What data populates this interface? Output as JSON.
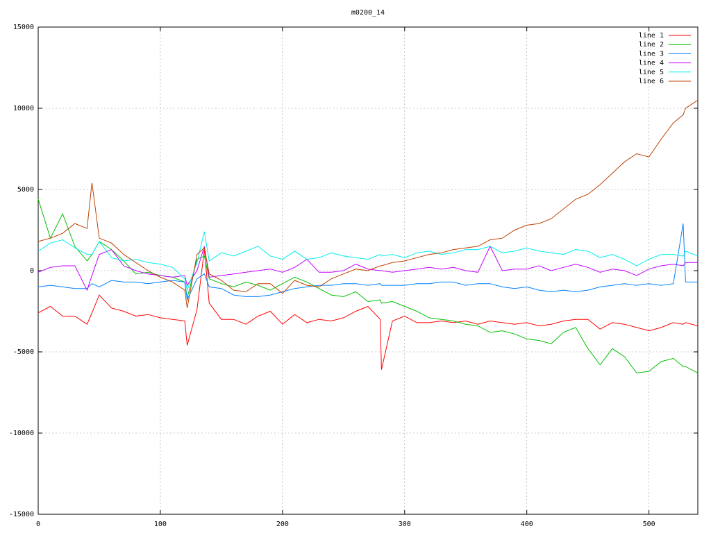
{
  "chart_data": {
    "type": "line",
    "title": "m0200_14",
    "x": [
      0,
      10,
      20,
      30,
      40,
      44,
      50,
      60,
      70,
      80,
      90,
      100,
      110,
      120,
      122,
      130,
      136,
      140,
      150,
      160,
      170,
      180,
      190,
      200,
      210,
      220,
      230,
      240,
      250,
      260,
      270,
      280,
      281,
      290,
      300,
      310,
      320,
      330,
      340,
      350,
      360,
      370,
      380,
      390,
      400,
      410,
      420,
      430,
      440,
      450,
      460,
      470,
      480,
      490,
      500,
      510,
      520,
      528,
      530,
      540
    ],
    "series": [
      {
        "name": "line 1",
        "color": "#ff0000",
        "values": [
          -2600,
          -2200,
          -2800,
          -2800,
          -3300,
          -2600,
          -1500,
          -2300,
          -2500,
          -2800,
          -2700,
          -2900,
          -3000,
          -3100,
          -4600,
          -2400,
          1300,
          -2000,
          -3000,
          -3000,
          -3300,
          -2800,
          -2500,
          -3300,
          -2700,
          -3200,
          -3000,
          -3100,
          -2900,
          -2500,
          -2200,
          -3000,
          -6100,
          -3100,
          -2800,
          -3200,
          -3200,
          -3100,
          -3200,
          -3100,
          -3300,
          -3100,
          -3200,
          -3300,
          -3200,
          -3400,
          -3300,
          -3100,
          -3000,
          -3000,
          -3600,
          -3200,
          -3300,
          -3500,
          -3700,
          -3500,
          -3200,
          -3300,
          -3200,
          -3400
        ]
      },
      {
        "name": "line 2",
        "color": "#00c000",
        "values": [
          4400,
          2000,
          3500,
          1500,
          600,
          1000,
          1800,
          1300,
          600,
          -200,
          -100,
          -300,
          -400,
          -700,
          -1700,
          700,
          900,
          -500,
          -800,
          -1000,
          -700,
          -900,
          -1200,
          -800,
          -400,
          -700,
          -1100,
          -1500,
          -1600,
          -1300,
          -1900,
          -1800,
          -2000,
          -1900,
          -2200,
          -2500,
          -2900,
          -3000,
          -3100,
          -3300,
          -3400,
          -3800,
          -3700,
          -3900,
          -4200,
          -4300,
          -4500,
          -3800,
          -3500,
          -4800,
          -5800,
          -4800,
          -5300,
          -6300,
          -6200,
          -5600,
          -5400,
          -5900,
          -5900,
          -6300
        ]
      },
      {
        "name": "line 3",
        "color": "#0080ff",
        "values": [
          -1000,
          -900,
          -1000,
          -1100,
          -1100,
          -800,
          -1000,
          -600,
          -700,
          -700,
          -800,
          -700,
          -600,
          -700,
          -1800,
          -500,
          -200,
          -1000,
          -1100,
          -1500,
          -1600,
          -1600,
          -1500,
          -1300,
          -1100,
          -1000,
          -900,
          -900,
          -800,
          -800,
          -900,
          -800,
          -900,
          -900,
          -900,
          -800,
          -800,
          -700,
          -700,
          -900,
          -800,
          -800,
          -1000,
          -1100,
          -1000,
          -1200,
          -1300,
          -1200,
          -1300,
          -1200,
          -1000,
          -900,
          -800,
          -900,
          -800,
          -900,
          -800,
          2900,
          -700,
          -700
        ]
      },
      {
        "name": "line 4",
        "color": "#c000ff",
        "values": [
          -100,
          200,
          300,
          300,
          -1200,
          -300,
          1000,
          1300,
          300,
          0,
          -200,
          -300,
          -400,
          -300,
          -900,
          0,
          1500,
          -400,
          -300,
          -200,
          -100,
          0,
          100,
          -100,
          200,
          700,
          -100,
          -100,
          0,
          400,
          100,
          0,
          0,
          -100,
          0,
          100,
          200,
          100,
          200,
          0,
          -100,
          1500,
          0,
          100,
          100,
          300,
          0,
          200,
          400,
          200,
          -100,
          100,
          0,
          -300,
          100,
          300,
          400,
          300,
          500,
          500
        ]
      },
      {
        "name": "line 5",
        "color": "#00eeee",
        "values": [
          1200,
          1700,
          1900,
          1400,
          1000,
          1000,
          1800,
          800,
          600,
          700,
          500,
          400,
          200,
          -500,
          -1200,
          500,
          2400,
          600,
          1100,
          900,
          1200,
          1500,
          900,
          700,
          1200,
          700,
          800,
          1100,
          900,
          800,
          700,
          1000,
          900,
          1000,
          800,
          1100,
          1200,
          1000,
          1100,
          1300,
          1300,
          1500,
          1100,
          1200,
          1400,
          1200,
          1100,
          1000,
          1300,
          1200,
          800,
          1000,
          700,
          300,
          700,
          1000,
          1000,
          900,
          1200,
          900
        ]
      },
      {
        "name": "line 6",
        "color": "#c04000",
        "values": [
          1800,
          2000,
          2300,
          2900,
          2600,
          5400,
          2000,
          1700,
          1000,
          500,
          0,
          -400,
          -700,
          -1200,
          -2300,
          1000,
          1400,
          -200,
          -600,
          -1200,
          -1300,
          -800,
          -800,
          -1400,
          -600,
          -900,
          -1000,
          -500,
          -200,
          100,
          0,
          300,
          300,
          500,
          600,
          800,
          1000,
          1100,
          1300,
          1400,
          1500,
          1900,
          2000,
          2500,
          2800,
          2900,
          3200,
          3800,
          4400,
          4700,
          5300,
          6000,
          6700,
          7200,
          7000,
          8100,
          9100,
          9600,
          10000,
          10500
        ]
      }
    ],
    "xlim": [
      0,
      540
    ],
    "xticks": [
      0,
      100,
      200,
      300,
      400,
      500
    ],
    "ylim": [
      -15000,
      15000
    ],
    "yticks": [
      -15000,
      -10000,
      -5000,
      0,
      5000,
      10000,
      15000
    ],
    "grid": true,
    "legend": "top-right"
  }
}
